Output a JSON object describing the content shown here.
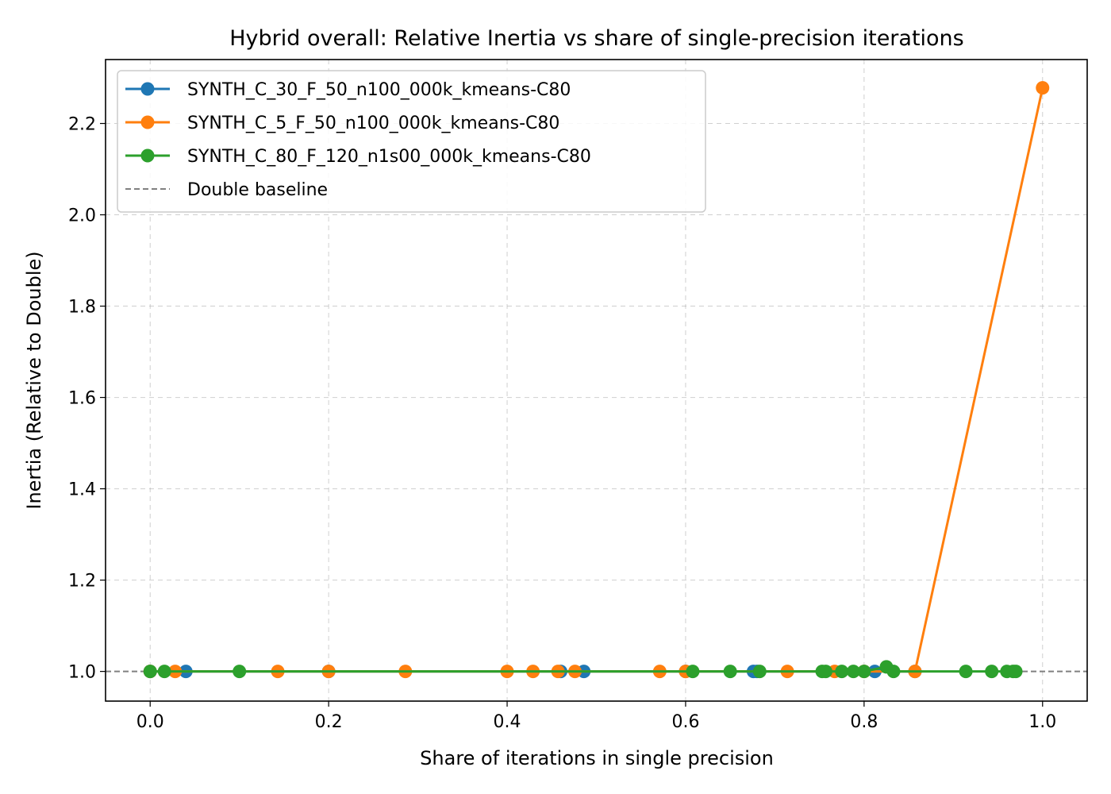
{
  "chart_data": {
    "type": "line",
    "title": "Hybrid overall: Relative Inertia vs share of single-precision iterations",
    "xlabel": "Share of iterations in single precision",
    "ylabel": "Inertia (Relative to Double)",
    "xlim": [
      -0.05,
      1.05
    ],
    "ylim": [
      0.935,
      2.34
    ],
    "xticks": [
      0.0,
      0.2,
      0.4,
      0.6,
      0.8,
      1.0
    ],
    "xtick_labels": [
      "0.0",
      "0.2",
      "0.4",
      "0.6",
      "0.8",
      "1.0"
    ],
    "yticks": [
      1.0,
      1.2,
      1.4,
      1.6,
      1.8,
      2.0,
      2.2
    ],
    "ytick_labels": [
      "1.0",
      "1.2",
      "1.4",
      "1.6",
      "1.8",
      "2.0",
      "2.2"
    ],
    "grid": true,
    "legend_position": "top-left",
    "baseline": {
      "name": "Double baseline",
      "y": 1.0,
      "color": "#808080",
      "style": "dashed"
    },
    "series": [
      {
        "name": "SYNTH_C_30_F_50_n100_000k_kmeans-C80",
        "color": "#1f77b4",
        "x": [
          0.0,
          0.04,
          0.2,
          0.46,
          0.486,
          0.6,
          0.676,
          0.68,
          0.812,
          0.857
        ],
        "y": [
          1.0,
          1.0,
          1.0,
          1.0,
          1.0,
          1.0,
          1.0,
          1.0,
          1.0,
          1.0
        ]
      },
      {
        "name": "SYNTH_C_5_F_50_n100_000k_kmeans-C80",
        "color": "#ff7f0e",
        "x": [
          0.0,
          0.028,
          0.143,
          0.2,
          0.286,
          0.4,
          0.429,
          0.457,
          0.476,
          0.571,
          0.6,
          0.714,
          0.767,
          0.8,
          0.857,
          1.0
        ],
        "y": [
          1.0,
          1.0,
          1.0,
          1.0,
          1.0,
          1.0,
          1.0,
          1.0,
          1.0,
          1.0,
          1.0,
          1.0,
          1.0,
          1.0,
          1.0,
          2.278
        ]
      },
      {
        "name": "SYNTH_C_80_F_120_n1s00_000k_kmeans-C80",
        "color": "#2ca02c",
        "x": [
          0.0,
          0.016,
          0.1,
          0.608,
          0.65,
          0.683,
          0.753,
          0.757,
          0.775,
          0.788,
          0.8,
          0.825,
          0.833,
          0.914,
          0.943,
          0.96,
          0.967,
          0.97
        ],
        "y": [
          1.0,
          1.0,
          1.0,
          1.0,
          1.0,
          1.0,
          1.0,
          1.0,
          1.0,
          1.0,
          1.0,
          1.01,
          1.0,
          1.0,
          1.0,
          1.0,
          1.0,
          1.0
        ]
      }
    ]
  }
}
